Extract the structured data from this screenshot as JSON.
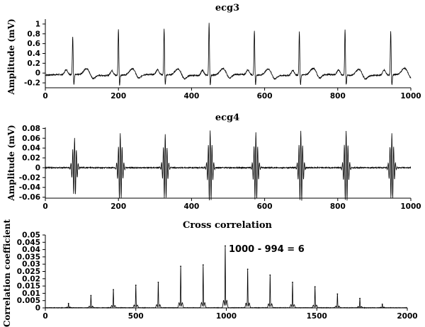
{
  "chart_data": [
    {
      "type": "line",
      "title": "ecg3",
      "xlabel": "",
      "ylabel": "Amplitude (mV)",
      "xlim": [
        0,
        1000
      ],
      "ylim": [
        -0.3,
        1.1
      ],
      "xticks": [
        0,
        200,
        400,
        600,
        800,
        1000
      ],
      "yticks": [
        -0.2,
        0,
        0.2,
        0.4,
        0.6,
        0.8,
        1
      ],
      "ytick_labels": [
        "-0.2",
        "0",
        "0.2",
        "0.4",
        "0.6",
        "0.8",
        "1"
      ],
      "grid": false,
      "line_color": "#000000",
      "baseline": -0.04,
      "beats": [
        {
          "r_time": 75,
          "r_peak": 0.75
        },
        {
          "r_time": 200,
          "r_peak": 0.92
        },
        {
          "r_time": 325,
          "r_peak": 0.9
        },
        {
          "r_time": 448,
          "r_peak": 1.04
        },
        {
          "r_time": 572,
          "r_peak": 0.88
        },
        {
          "r_time": 695,
          "r_peak": 0.85
        },
        {
          "r_time": 820,
          "r_peak": 0.9
        },
        {
          "r_time": 945,
          "r_peak": 0.85
        }
      ],
      "s_depth": -0.28,
      "t_wave_peak": 0.13
    },
    {
      "type": "line",
      "title": "ecg4",
      "xlabel": "",
      "ylabel": "Amplitude (mV)",
      "xlim": [
        0,
        1000
      ],
      "ylim": [
        -0.062,
        0.082
      ],
      "xticks": [
        0,
        200,
        400,
        600,
        800,
        1000
      ],
      "yticks": [
        -0.06,
        -0.04,
        -0.02,
        0,
        0.02,
        0.04,
        0.06,
        0.08
      ],
      "ytick_labels": [
        "-0.06",
        "-0.04",
        "-0.02",
        "0",
        "0.02",
        "0.04",
        "0.06",
        "0.08"
      ],
      "grid": false,
      "line_color": "#000000",
      "beats": [
        {
          "r_time": 80,
          "r_peak": 0.06
        },
        {
          "r_time": 205,
          "r_peak": 0.07
        },
        {
          "r_time": 328,
          "r_peak": 0.068
        },
        {
          "r_time": 451,
          "r_peak": 0.075
        },
        {
          "r_time": 576,
          "r_peak": 0.072
        },
        {
          "r_time": 699,
          "r_peak": 0.075
        },
        {
          "r_time": 823,
          "r_peak": 0.075
        },
        {
          "r_time": 948,
          "r_peak": 0.07
        }
      ],
      "trough": -0.06
    },
    {
      "type": "line",
      "title": "Cross correlation",
      "xlabel": "",
      "ylabel": "Correlation coefficient",
      "xlim": [
        0,
        2000
      ],
      "ylim": [
        0,
        0.05
      ],
      "xticks": [
        0,
        500,
        1000,
        1500,
        2000
      ],
      "yticks": [
        0,
        0.005,
        0.01,
        0.015,
        0.02,
        0.025,
        0.03,
        0.035,
        0.04,
        0.045,
        0.05
      ],
      "ytick_labels": [
        "0",
        "0.005",
        "0.01",
        "0.015",
        "0.02",
        "0.025",
        "0.03",
        "0.035",
        "0.04",
        "0.045",
        "0.05"
      ],
      "grid": false,
      "line_color": "#000000",
      "peaks": [
        {
          "lag": 128,
          "value": 0.003
        },
        {
          "lag": 252,
          "value": 0.0085
        },
        {
          "lag": 376,
          "value": 0.0125
        },
        {
          "lag": 500,
          "value": 0.0155
        },
        {
          "lag": 624,
          "value": 0.0175
        },
        {
          "lag": 748,
          "value": 0.0285
        },
        {
          "lag": 872,
          "value": 0.0295
        },
        {
          "lag": 994,
          "value": 0.0425
        },
        {
          "lag": 1118,
          "value": 0.0265
        },
        {
          "lag": 1242,
          "value": 0.0225
        },
        {
          "lag": 1366,
          "value": 0.0175
        },
        {
          "lag": 1490,
          "value": 0.0145
        },
        {
          "lag": 1614,
          "value": 0.0095
        },
        {
          "lag": 1738,
          "value": 0.0065
        },
        {
          "lag": 1862,
          "value": 0.0025
        }
      ],
      "annotation": {
        "text": "1000 - 994 = 6",
        "x": 994,
        "y": 0.0425
      }
    }
  ]
}
